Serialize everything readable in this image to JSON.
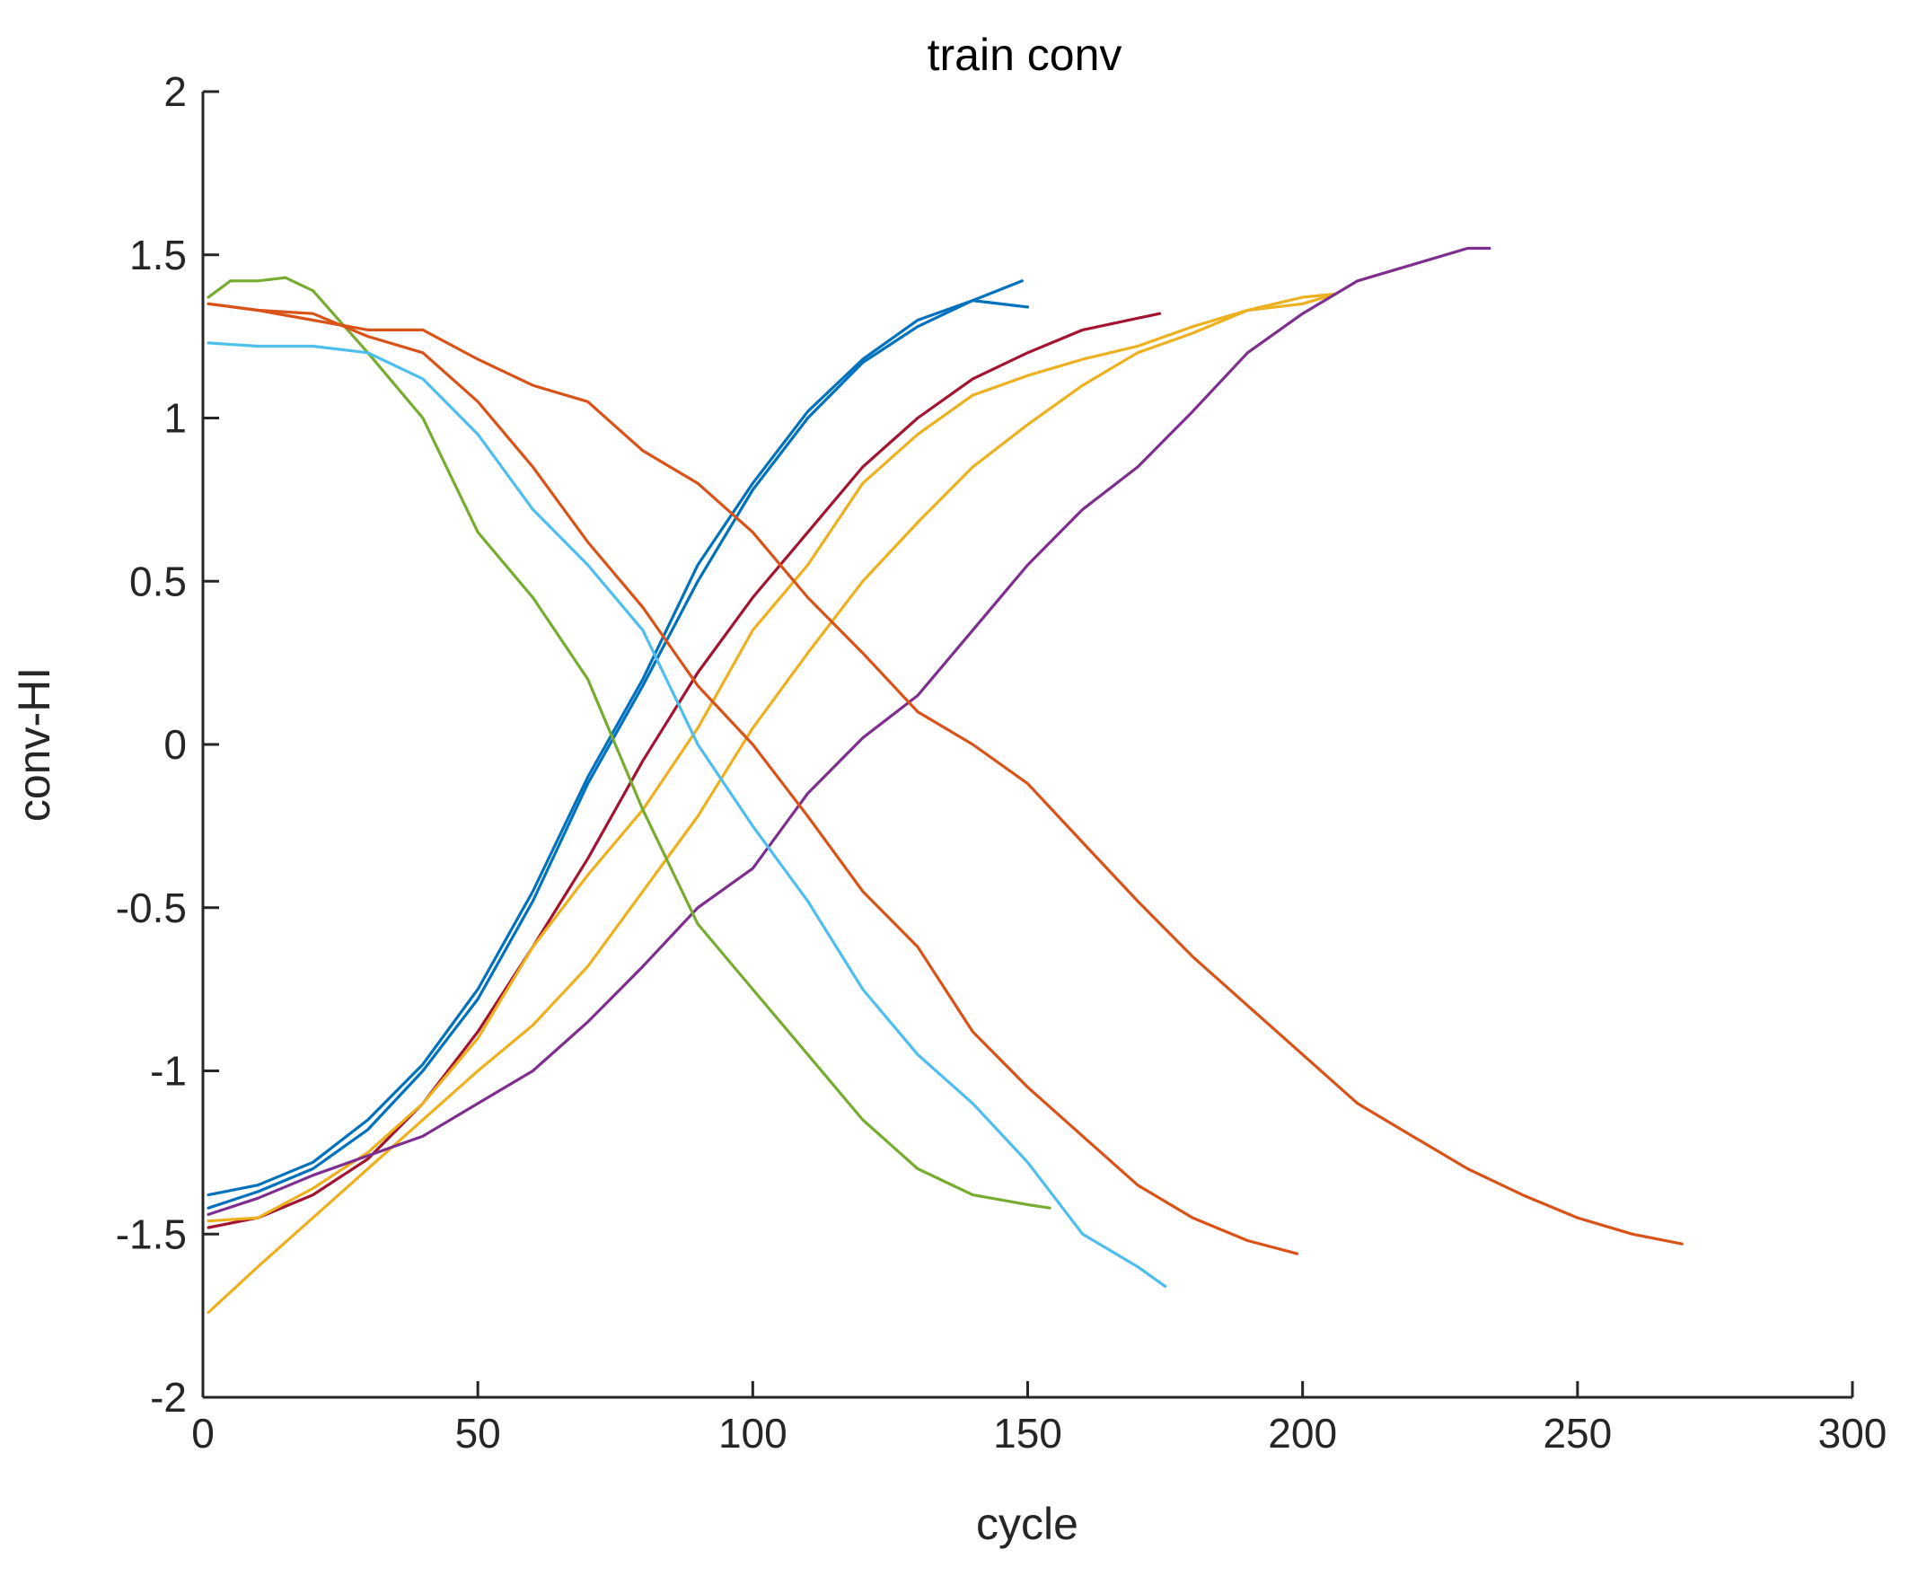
{
  "chart_data": {
    "type": "line",
    "title": "train conv",
    "xlabel": "cycle",
    "ylabel": "conv-HI",
    "xlim": [
      0,
      300
    ],
    "ylim": [
      -2,
      2
    ],
    "xticks": [
      0,
      50,
      100,
      150,
      200,
      250,
      300
    ],
    "yticks": [
      -2,
      -1.5,
      -1,
      -0.5,
      0,
      0.5,
      1,
      1.5,
      2
    ],
    "xtick_labels": [
      "0",
      "50",
      "100",
      "150",
      "200",
      "250",
      "300"
    ],
    "ytick_labels": [
      "-2",
      "-1.5",
      "-1",
      "-0.5",
      "0",
      "0.5",
      "1",
      "1.5",
      "2"
    ],
    "grid": false,
    "legend": "none",
    "series": [
      {
        "color": "#0072BD",
        "x": [
          1,
          10,
          20,
          30,
          40,
          50,
          60,
          70,
          80,
          90,
          100,
          110,
          120,
          130,
          140,
          150
        ],
        "y": [
          -1.38,
          -1.35,
          -1.28,
          -1.15,
          -0.98,
          -0.75,
          -0.45,
          -0.1,
          0.2,
          0.55,
          0.8,
          1.02,
          1.18,
          1.3,
          1.36,
          1.34
        ]
      },
      {
        "color": "#0072BD",
        "x": [
          1,
          10,
          20,
          30,
          40,
          50,
          60,
          70,
          80,
          90,
          100,
          110,
          120,
          130,
          140,
          149
        ],
        "y": [
          -1.42,
          -1.37,
          -1.3,
          -1.18,
          -1.0,
          -0.78,
          -0.48,
          -0.12,
          0.18,
          0.5,
          0.78,
          1.0,
          1.17,
          1.28,
          1.36,
          1.42
        ]
      },
      {
        "color": "#A2142F",
        "x": [
          1,
          10,
          20,
          30,
          40,
          50,
          60,
          70,
          80,
          90,
          100,
          110,
          120,
          130,
          140,
          150,
          160,
          174
        ],
        "y": [
          -1.48,
          -1.45,
          -1.38,
          -1.27,
          -1.1,
          -0.88,
          -0.62,
          -0.35,
          -0.05,
          0.22,
          0.45,
          0.65,
          0.85,
          1.0,
          1.12,
          1.2,
          1.27,
          1.32
        ]
      },
      {
        "color": "#EDB120",
        "x": [
          1,
          10,
          20,
          30,
          40,
          50,
          60,
          70,
          80,
          90,
          100,
          110,
          120,
          130,
          140,
          150,
          160,
          170,
          180,
          190,
          200,
          206
        ],
        "y": [
          -1.46,
          -1.45,
          -1.36,
          -1.25,
          -1.1,
          -0.9,
          -0.62,
          -0.4,
          -0.2,
          0.05,
          0.35,
          0.55,
          0.8,
          0.95,
          1.07,
          1.13,
          1.18,
          1.22,
          1.28,
          1.33,
          1.37,
          1.38
        ]
      },
      {
        "color": "#EDB120",
        "x": [
          1,
          10,
          20,
          30,
          40,
          50,
          60,
          70,
          80,
          90,
          100,
          110,
          120,
          130,
          140,
          150,
          160,
          170,
          180,
          190,
          200,
          206
        ],
        "y": [
          -1.74,
          -1.6,
          -1.45,
          -1.3,
          -1.15,
          -1.0,
          -0.86,
          -0.68,
          -0.45,
          -0.22,
          0.05,
          0.28,
          0.5,
          0.68,
          0.85,
          0.98,
          1.1,
          1.2,
          1.26,
          1.33,
          1.35,
          1.38
        ]
      },
      {
        "color": "#7E2F8E",
        "x": [
          1,
          10,
          20,
          30,
          40,
          50,
          60,
          70,
          80,
          90,
          100,
          110,
          120,
          130,
          140,
          150,
          160,
          170,
          180,
          190,
          200,
          210,
          220,
          230,
          234
        ],
        "y": [
          -1.44,
          -1.39,
          -1.32,
          -1.26,
          -1.2,
          -1.1,
          -1.0,
          -0.85,
          -0.68,
          -0.5,
          -0.38,
          -0.15,
          0.02,
          0.15,
          0.35,
          0.55,
          0.72,
          0.85,
          1.02,
          1.2,
          1.32,
          1.42,
          1.47,
          1.52,
          1.52
        ]
      },
      {
        "color": "#77AC30",
        "x": [
          1,
          5,
          10,
          15,
          20,
          30,
          40,
          50,
          60,
          70,
          80,
          90,
          100,
          110,
          120,
          130,
          140,
          150,
          154
        ],
        "y": [
          1.37,
          1.42,
          1.42,
          1.43,
          1.39,
          1.2,
          1.0,
          0.65,
          0.45,
          0.2,
          -0.2,
          -0.55,
          -0.75,
          -0.95,
          -1.15,
          -1.3,
          -1.38,
          -1.41,
          -1.42
        ]
      },
      {
        "color": "#4DBEEE",
        "x": [
          1,
          10,
          20,
          30,
          40,
          50,
          60,
          70,
          80,
          90,
          100,
          110,
          120,
          130,
          140,
          150,
          160,
          170,
          175
        ],
        "y": [
          1.23,
          1.22,
          1.22,
          1.2,
          1.12,
          0.95,
          0.72,
          0.55,
          0.35,
          0.0,
          -0.25,
          -0.48,
          -0.75,
          -0.95,
          -1.1,
          -1.28,
          -1.5,
          -1.6,
          -1.66
        ]
      },
      {
        "color": "#D95319",
        "x": [
          1,
          10,
          20,
          30,
          40,
          50,
          60,
          70,
          80,
          90,
          100,
          110,
          120,
          130,
          140,
          150,
          160,
          170,
          180,
          190,
          199
        ],
        "y": [
          1.35,
          1.33,
          1.32,
          1.25,
          1.2,
          1.05,
          0.85,
          0.62,
          0.42,
          0.18,
          0.0,
          -0.22,
          -0.45,
          -0.62,
          -0.88,
          -1.05,
          -1.2,
          -1.35,
          -1.45,
          -1.52,
          -1.56
        ]
      },
      {
        "color": "#D95319",
        "x": [
          1,
          10,
          20,
          30,
          40,
          50,
          60,
          70,
          80,
          90,
          100,
          110,
          120,
          130,
          140,
          150,
          160,
          170,
          180,
          190,
          200,
          210,
          220,
          230,
          240,
          250,
          260,
          269
        ],
        "y": [
          1.35,
          1.33,
          1.3,
          1.27,
          1.27,
          1.18,
          1.1,
          1.05,
          0.9,
          0.8,
          0.65,
          0.45,
          0.28,
          0.1,
          0.0,
          -0.12,
          -0.3,
          -0.48,
          -0.65,
          -0.8,
          -0.95,
          -1.1,
          -1.2,
          -1.3,
          -1.38,
          -1.45,
          -1.5,
          -1.53
        ]
      }
    ]
  }
}
